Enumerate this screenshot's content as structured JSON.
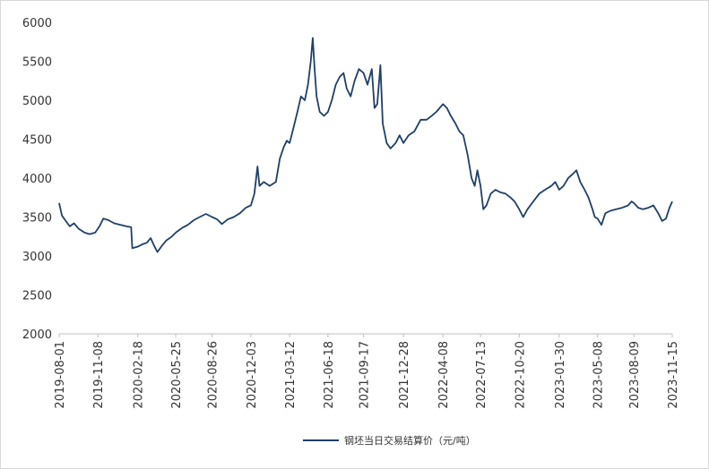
{
  "chart_data": {
    "type": "line",
    "title": "",
    "xlabel": "",
    "ylabel": "",
    "ylim": [
      2000,
      6000
    ],
    "yticks": [
      2000,
      2500,
      3000,
      3500,
      4000,
      4500,
      5000,
      5500,
      6000
    ],
    "xlim": [
      "2019-08-01",
      "2023-11-15"
    ],
    "xticks": [
      "2019-08-01",
      "2019-11-08",
      "2020-02-18",
      "2020-05-25",
      "2020-08-26",
      "2020-12-03",
      "2021-03-12",
      "2021-06-18",
      "2021-09-17",
      "2021-12-28",
      "2022-04-08",
      "2022-07-13",
      "2022-10-20",
      "2023-01-30",
      "2023-05-08",
      "2023-08-09",
      "2023-11-15"
    ],
    "grid": false,
    "legend_position": "bottom",
    "series": [
      {
        "name": "钢坯当日交易结算价（元/吨）",
        "color": "#1f3f66",
        "points": [
          [
            "2019-08-01",
            3680
          ],
          [
            "2019-08-08",
            3520
          ],
          [
            "2019-08-18",
            3450
          ],
          [
            "2019-08-28",
            3380
          ],
          [
            "2019-09-08",
            3420
          ],
          [
            "2019-09-20",
            3350
          ],
          [
            "2019-10-05",
            3300
          ],
          [
            "2019-10-18",
            3280
          ],
          [
            "2019-11-01",
            3300
          ],
          [
            "2019-11-12",
            3380
          ],
          [
            "2019-11-22",
            3480
          ],
          [
            "2019-12-05",
            3460
          ],
          [
            "2019-12-20",
            3420
          ],
          [
            "2020-01-05",
            3400
          ],
          [
            "2020-01-20",
            3380
          ],
          [
            "2020-02-01",
            3370
          ],
          [
            "2020-02-04",
            3100
          ],
          [
            "2020-02-18",
            3120
          ],
          [
            "2020-03-01",
            3150
          ],
          [
            "2020-03-12",
            3170
          ],
          [
            "2020-03-22",
            3230
          ],
          [
            "2020-03-30",
            3140
          ],
          [
            "2020-04-08",
            3050
          ],
          [
            "2020-04-18",
            3120
          ],
          [
            "2020-05-01",
            3200
          ],
          [
            "2020-05-15",
            3250
          ],
          [
            "2020-05-25",
            3300
          ],
          [
            "2020-06-10",
            3360
          ],
          [
            "2020-06-25",
            3400
          ],
          [
            "2020-07-10",
            3460
          ],
          [
            "2020-07-25",
            3500
          ],
          [
            "2020-08-10",
            3540
          ],
          [
            "2020-08-26",
            3500
          ],
          [
            "2020-09-08",
            3470
          ],
          [
            "2020-09-20",
            3410
          ],
          [
            "2020-10-05",
            3470
          ],
          [
            "2020-10-20",
            3500
          ],
          [
            "2020-11-05",
            3550
          ],
          [
            "2020-11-20",
            3620
          ],
          [
            "2020-12-03",
            3650
          ],
          [
            "2020-12-12",
            3800
          ],
          [
            "2020-12-20",
            4150
          ],
          [
            "2020-12-25",
            3900
          ],
          [
            "2021-01-05",
            3950
          ],
          [
            "2021-01-20",
            3900
          ],
          [
            "2021-02-05",
            3950
          ],
          [
            "2021-02-15",
            4250
          ],
          [
            "2021-02-25",
            4400
          ],
          [
            "2021-03-05",
            4480
          ],
          [
            "2021-03-12",
            4450
          ],
          [
            "2021-03-22",
            4650
          ],
          [
            "2021-04-01",
            4850
          ],
          [
            "2021-04-10",
            5050
          ],
          [
            "2021-04-20",
            5000
          ],
          [
            "2021-04-28",
            5200
          ],
          [
            "2021-05-05",
            5500
          ],
          [
            "2021-05-10",
            5800
          ],
          [
            "2021-05-15",
            5400
          ],
          [
            "2021-05-20",
            5050
          ],
          [
            "2021-05-28",
            4850
          ],
          [
            "2021-06-08",
            4800
          ],
          [
            "2021-06-18",
            4850
          ],
          [
            "2021-06-28",
            5000
          ],
          [
            "2021-07-08",
            5200
          ],
          [
            "2021-07-18",
            5300
          ],
          [
            "2021-07-28",
            5350
          ],
          [
            "2021-08-05",
            5150
          ],
          [
            "2021-08-15",
            5050
          ],
          [
            "2021-08-25",
            5250
          ],
          [
            "2021-09-05",
            5400
          ],
          [
            "2021-09-17",
            5350
          ],
          [
            "2021-09-27",
            5200
          ],
          [
            "2021-10-08",
            5400
          ],
          [
            "2021-10-15",
            4900
          ],
          [
            "2021-10-22",
            4950
          ],
          [
            "2021-10-30",
            5450
          ],
          [
            "2021-11-05",
            4700
          ],
          [
            "2021-11-15",
            4450
          ],
          [
            "2021-11-25",
            4380
          ],
          [
            "2021-12-08",
            4450
          ],
          [
            "2021-12-18",
            4550
          ],
          [
            "2021-12-28",
            4450
          ],
          [
            "2022-01-10",
            4550
          ],
          [
            "2022-01-25",
            4600
          ],
          [
            "2022-02-10",
            4750
          ],
          [
            "2022-02-25",
            4750
          ],
          [
            "2022-03-10",
            4800
          ],
          [
            "2022-03-22",
            4850
          ],
          [
            "2022-04-08",
            4950
          ],
          [
            "2022-04-18",
            4900
          ],
          [
            "2022-04-28",
            4800
          ],
          [
            "2022-05-10",
            4700
          ],
          [
            "2022-05-20",
            4600
          ],
          [
            "2022-05-30",
            4550
          ],
          [
            "2022-06-10",
            4300
          ],
          [
            "2022-06-20",
            4000
          ],
          [
            "2022-06-28",
            3900
          ],
          [
            "2022-07-05",
            4100
          ],
          [
            "2022-07-13",
            3900
          ],
          [
            "2022-07-20",
            3600
          ],
          [
            "2022-07-28",
            3650
          ],
          [
            "2022-08-08",
            3800
          ],
          [
            "2022-08-20",
            3850
          ],
          [
            "2022-09-01",
            3820
          ],
          [
            "2022-09-15",
            3800
          ],
          [
            "2022-09-28",
            3750
          ],
          [
            "2022-10-08",
            3700
          ],
          [
            "2022-10-20",
            3600
          ],
          [
            "2022-10-30",
            3500
          ],
          [
            "2022-11-10",
            3600
          ],
          [
            "2022-11-25",
            3700
          ],
          [
            "2022-12-10",
            3800
          ],
          [
            "2022-12-25",
            3850
          ],
          [
            "2023-01-10",
            3900
          ],
          [
            "2023-01-20",
            3950
          ],
          [
            "2023-01-30",
            3850
          ],
          [
            "2023-02-10",
            3900
          ],
          [
            "2023-02-22",
            4000
          ],
          [
            "2023-03-05",
            4050
          ],
          [
            "2023-03-15",
            4100
          ],
          [
            "2023-03-25",
            3950
          ],
          [
            "2023-04-05",
            3850
          ],
          [
            "2023-04-15",
            3750
          ],
          [
            "2023-04-25",
            3600
          ],
          [
            "2023-05-01",
            3500
          ],
          [
            "2023-05-08",
            3480
          ],
          [
            "2023-05-18",
            3400
          ],
          [
            "2023-05-28",
            3550
          ],
          [
            "2023-06-10",
            3580
          ],
          [
            "2023-06-25",
            3600
          ],
          [
            "2023-07-10",
            3620
          ],
          [
            "2023-07-25",
            3650
          ],
          [
            "2023-08-03",
            3700
          ],
          [
            "2023-08-09",
            3680
          ],
          [
            "2023-08-20",
            3620
          ],
          [
            "2023-09-01",
            3600
          ],
          [
            "2023-09-15",
            3620
          ],
          [
            "2023-09-28",
            3650
          ],
          [
            "2023-10-10",
            3550
          ],
          [
            "2023-10-20",
            3450
          ],
          [
            "2023-10-30",
            3480
          ],
          [
            "2023-11-08",
            3620
          ],
          [
            "2023-11-15",
            3700
          ]
        ]
      }
    ]
  }
}
